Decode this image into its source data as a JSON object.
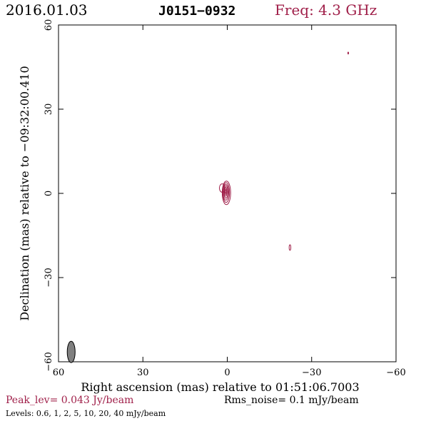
{
  "header": {
    "date": "2016.01.03",
    "source": "J0151−0932",
    "frequency": "Freq: 4.3 GHz"
  },
  "footer": {
    "peak": "Peak_lev=  0.043 Jy/beam",
    "rms": "Rms_noise=  0.1 mJy/beam",
    "levels": "Levels: 0.6,   1,   2,   5,   10,   20,   40 mJy/beam"
  },
  "colors": {
    "contour": "#a0204a",
    "axis": "#000000",
    "beam": "#808080"
  },
  "chart_data": {
    "type": "contour",
    "xlabel": "Right ascension (mas) relative to 01:51:06.7003",
    "ylabel": "Declination (mas) relative to −09:32:00.410",
    "xlim": [
      60,
      -60
    ],
    "ylim": [
      -60,
      60
    ],
    "x_ticks": [
      60,
      30,
      0,
      -30,
      -60
    ],
    "x_tick_labels": [
      "60",
      "30",
      "0",
      "−30",
      "−60"
    ],
    "y_ticks": [
      -60,
      -30,
      0,
      30,
      60
    ],
    "y_tick_labels": [
      "−60",
      "−30",
      "0",
      "30",
      "60"
    ],
    "contour_levels_mJy": [
      0.6,
      1,
      2,
      5,
      10,
      20,
      40
    ],
    "components": [
      {
        "name": "core",
        "x": 0.3,
        "y": 0.5,
        "contours": [
          {
            "rx": 1.5,
            "ry": 4.2,
            "dx": 0.0,
            "dy": -0.3
          },
          {
            "rx": 1.2,
            "ry": 3.5,
            "dx": 0.1,
            "dy": -0.2
          },
          {
            "rx": 1.0,
            "ry": 2.8,
            "dx": 0.2,
            "dy": -0.1
          },
          {
            "rx": 0.75,
            "ry": 2.2,
            "dx": 0.2,
            "dy": 0.0
          },
          {
            "rx": 0.55,
            "ry": 1.6,
            "dx": 0.3,
            "dy": 0.1
          },
          {
            "rx": 0.35,
            "ry": 1.0,
            "dx": 0.3,
            "dy": 0.1
          },
          {
            "rx": 0.2,
            "ry": 0.5,
            "dx": 0.3,
            "dy": 0.1
          }
        ]
      },
      {
        "name": "lobe",
        "x": 1.8,
        "y": 1.9,
        "contours": [
          {
            "rx": 1.0,
            "ry": 1.5,
            "dx": 0.0,
            "dy": 0.0
          }
        ]
      },
      {
        "name": "knot",
        "x": -22.3,
        "y": -19.3,
        "contours": [
          {
            "rx": 0.3,
            "ry": 1.0,
            "dx": 0.0,
            "dy": 0.0
          }
        ]
      },
      {
        "name": "dot",
        "x": -43.0,
        "y": 50.0,
        "contours": [
          {
            "rx": 0.12,
            "ry": 0.35,
            "dx": 0.0,
            "dy": 0.0
          }
        ]
      }
    ],
    "beam": {
      "x": 55.5,
      "y": -56.5,
      "major": 3.8,
      "minor": 1.4,
      "pa_deg": 0
    }
  }
}
